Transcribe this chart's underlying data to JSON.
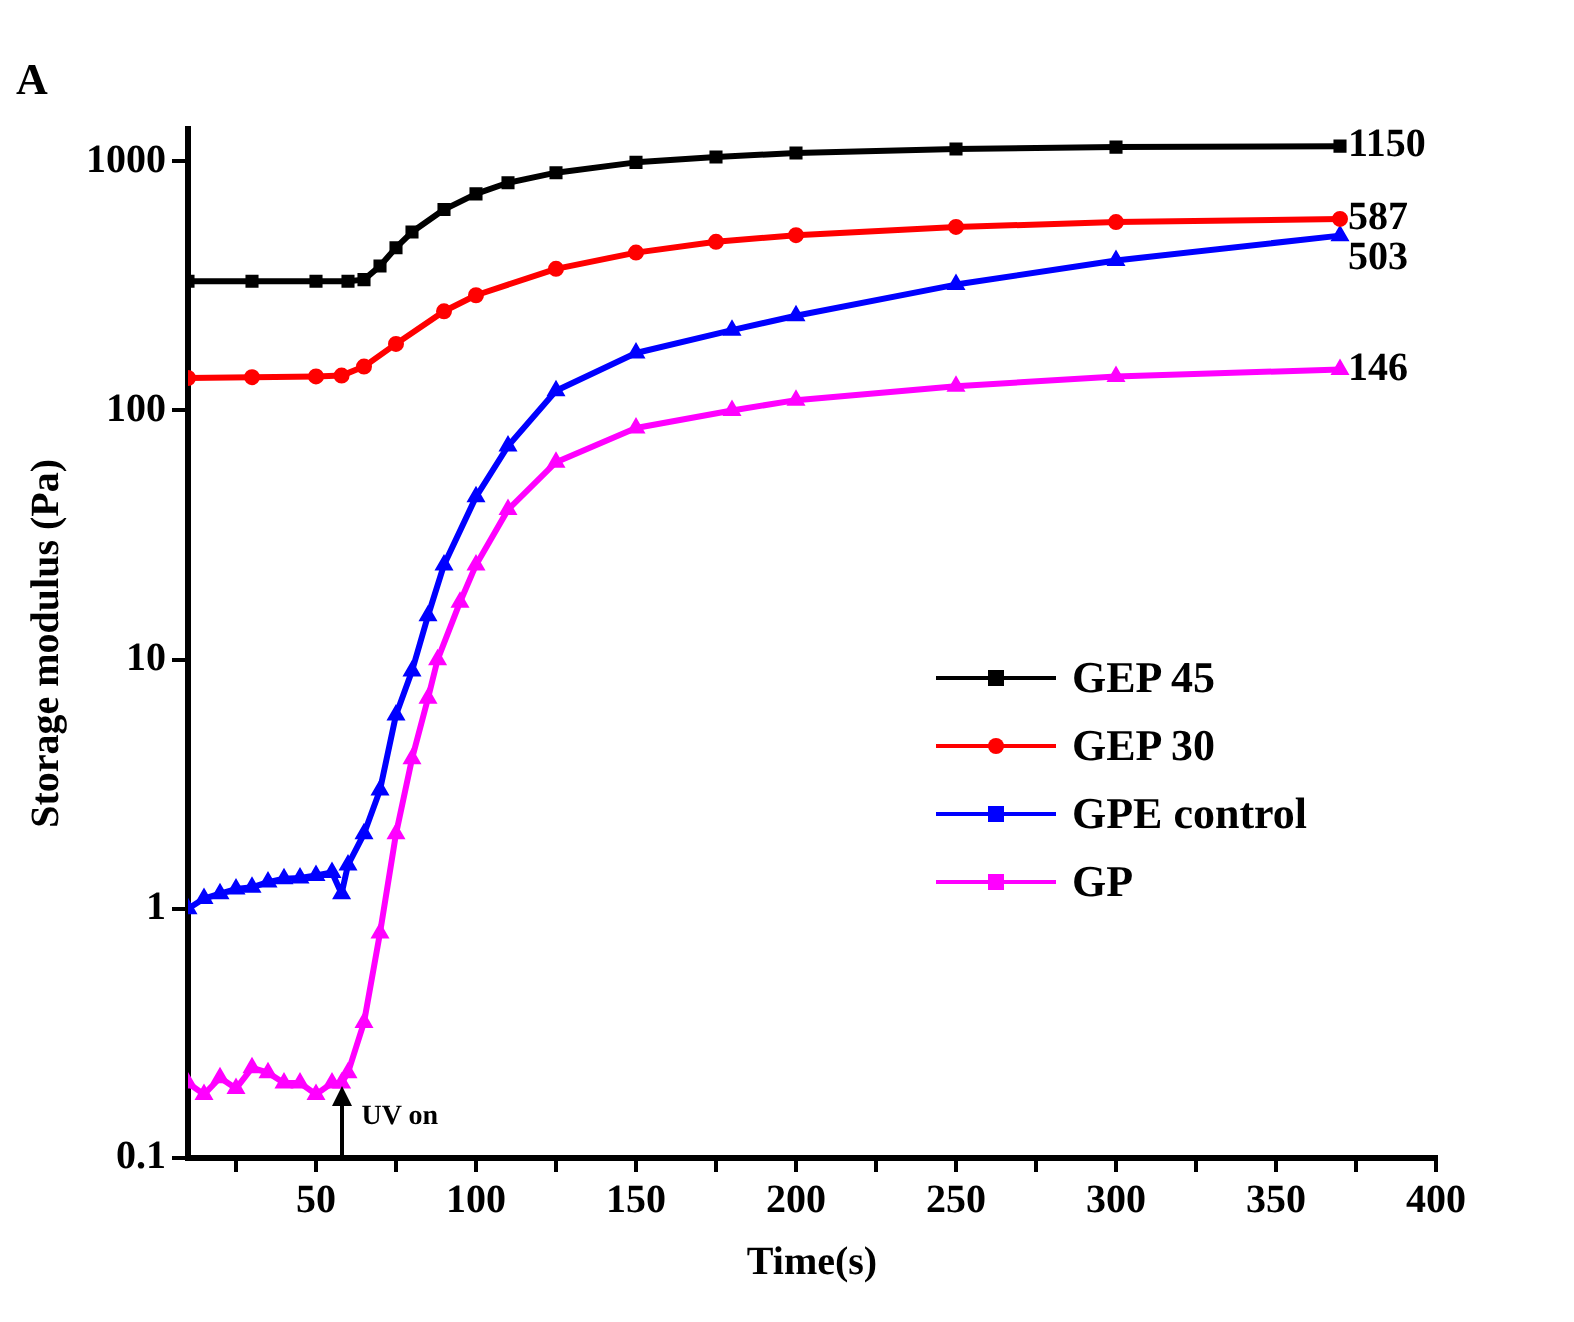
{
  "chart_data": {
    "type": "line",
    "title": "A",
    "xlabel": "Time(s)",
    "ylabel": "Storage modulus (Pa)",
    "log": "y",
    "grid": false,
    "legend": "right",
    "xlim": [
      10,
      400
    ],
    "xticks": [
      {
        "value": 25,
        "label": null
      },
      50,
      {
        "value": 75,
        "label": null
      },
      100,
      {
        "value": 125,
        "label": null
      },
      150,
      {
        "value": 175,
        "label": null
      },
      200,
      {
        "value": 225,
        "label": null
      },
      250,
      {
        "value": 275,
        "label": null
      },
      300,
      {
        "value": 325,
        "label": null
      },
      350,
      {
        "value": 375,
        "label": null
      },
      400
    ],
    "ylim": [
      0.1,
      1350
    ],
    "yticks": [
      {
        "value": 0.1,
        "label": "0.1"
      },
      1,
      10,
      100,
      1000
    ],
    "series": [
      {
        "name": "GEP 45",
        "color": "#000000",
        "marker": "square",
        "x": [
          10,
          30,
          50,
          60,
          65,
          70,
          75,
          80,
          90,
          100,
          110,
          125,
          150,
          175,
          200,
          250,
          300,
          370
        ],
        "values": [
          330,
          330,
          330,
          330,
          335,
          380,
          450,
          520,
          640,
          740,
          820,
          900,
          990,
          1040,
          1080,
          1120,
          1140,
          1150
        ],
        "value_labels": [
          null,
          null,
          null,
          null,
          null,
          null,
          null,
          null,
          null,
          null,
          null,
          null,
          null,
          null,
          null,
          null,
          null,
          "1150"
        ]
      },
      {
        "name": "GEP 30",
        "color": "#ff0000",
        "marker": "circle",
        "x": [
          10,
          30,
          50,
          58,
          65,
          75,
          90,
          100,
          125,
          150,
          175,
          200,
          250,
          300,
          370
        ],
        "values": [
          135,
          136,
          137,
          138,
          150,
          185,
          250,
          290,
          370,
          430,
          475,
          505,
          545,
          570,
          587
        ],
        "value_labels": [
          null,
          null,
          null,
          null,
          null,
          null,
          null,
          null,
          null,
          null,
          null,
          null,
          null,
          null,
          "587"
        ]
      },
      {
        "name": "GPE control",
        "color": "#0000ff",
        "marker": "triangle",
        "x": [
          10,
          15,
          20,
          25,
          30,
          35,
          40,
          45,
          50,
          55,
          58,
          60,
          65,
          70,
          75,
          80,
          85,
          90,
          100,
          110,
          125,
          150,
          180,
          200,
          250,
          300,
          370
        ],
        "values": [
          1.0,
          1.1,
          1.15,
          1.2,
          1.22,
          1.28,
          1.32,
          1.33,
          1.36,
          1.4,
          1.15,
          1.5,
          2,
          3,
          6,
          9,
          15,
          24,
          45,
          72,
          120,
          170,
          210,
          240,
          320,
          400,
          503
        ],
        "value_labels": [
          null,
          null,
          null,
          null,
          null,
          null,
          null,
          null,
          null,
          null,
          null,
          null,
          null,
          null,
          null,
          null,
          null,
          null,
          null,
          null,
          null,
          null,
          null,
          null,
          null,
          null,
          "503"
        ]
      },
      {
        "name": "GP",
        "color": "#ff00ff",
        "marker": "triangle",
        "x": [
          10,
          15,
          20,
          25,
          30,
          35,
          40,
          45,
          50,
          55,
          58,
          60,
          65,
          70,
          75,
          80,
          85,
          88,
          95,
          100,
          110,
          125,
          150,
          180,
          200,
          250,
          300,
          370
        ],
        "values": [
          0.2,
          0.18,
          0.21,
          0.19,
          0.23,
          0.22,
          0.2,
          0.2,
          0.18,
          0.2,
          0.2,
          0.22,
          0.35,
          0.8,
          2,
          4,
          7,
          10,
          17,
          24,
          40,
          62,
          85,
          100,
          110,
          125,
          137,
          146
        ],
        "value_labels": [
          null,
          null,
          null,
          null,
          null,
          null,
          null,
          null,
          null,
          null,
          null,
          null,
          null,
          null,
          null,
          null,
          null,
          null,
          null,
          null,
          null,
          null,
          null,
          null,
          null,
          null,
          null,
          "146"
        ]
      }
    ],
    "annotations": [
      "UV on"
    ]
  }
}
